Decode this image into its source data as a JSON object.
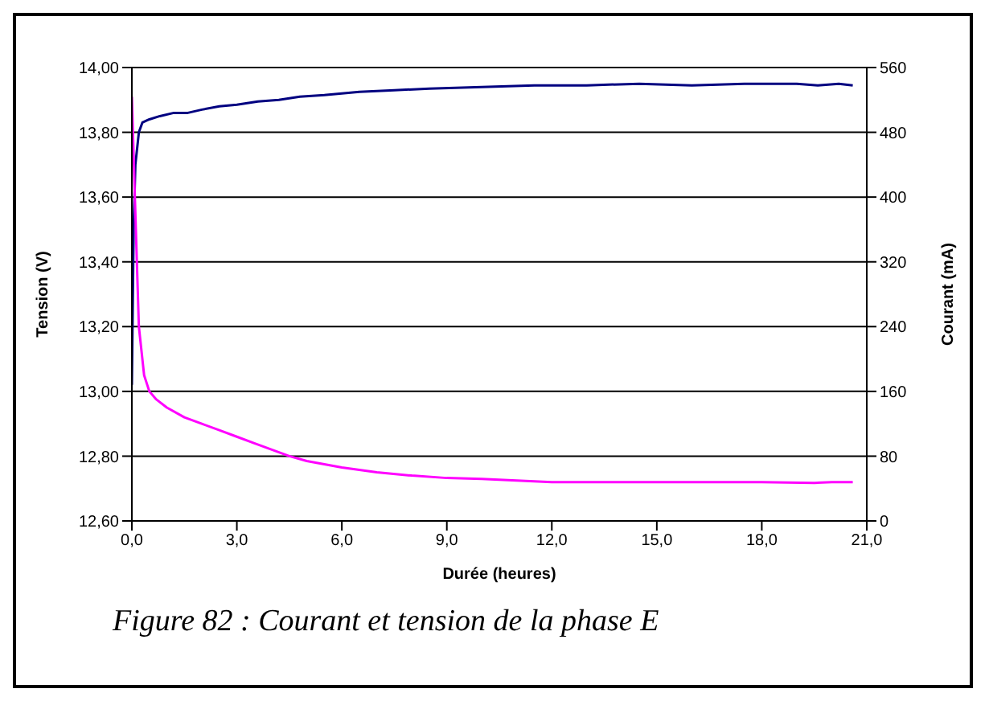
{
  "chart_data": {
    "type": "line",
    "xlabel": "Durée (heures)",
    "ylabel": "Tension (V)",
    "y2label": "Courant (mA)",
    "annotations": [
      "Figure 82 : Courant et tension de la phase E"
    ],
    "xlim": [
      0,
      21
    ],
    "xticks": [
      {
        "value": 0,
        "label": "0,0"
      },
      {
        "value": 3,
        "label": "3,0"
      },
      {
        "value": 6,
        "label": "6,0"
      },
      {
        "value": 9,
        "label": "9,0"
      },
      {
        "value": 12,
        "label": "12,0"
      },
      {
        "value": 15,
        "label": "15,0"
      },
      {
        "value": 18,
        "label": "18,0"
      },
      {
        "value": 21,
        "label": "21,0"
      }
    ],
    "ylim": [
      12.6,
      14
    ],
    "yticks": [
      {
        "value": 12.6,
        "label": "12,60"
      },
      {
        "value": 12.8,
        "label": "12,80"
      },
      {
        "value": 13,
        "label": "13,00"
      },
      {
        "value": 13.2,
        "label": "13,20"
      },
      {
        "value": 13.4,
        "label": "13,40"
      },
      {
        "value": 13.6,
        "label": "13,60"
      },
      {
        "value": 13.8,
        "label": "13,80"
      },
      {
        "value": 14,
        "label": "14,00"
      }
    ],
    "y2lim": [
      0,
      560
    ],
    "y2ticks": [
      0,
      80,
      160,
      240,
      320,
      400,
      480,
      560
    ],
    "grid": "y",
    "marker": "none",
    "line_style": "solid",
    "series": [
      {
        "color": "#000080",
        "x": [
          0,
          0.05,
          0.1,
          0.2,
          0.3,
          0.5,
          0.8,
          1.2,
          1.6,
          2.0,
          2.5,
          3.0,
          3.6,
          4.2,
          4.8,
          5.5,
          6.5,
          7.5,
          8.5,
          10,
          11.5,
          13,
          14.5,
          16,
          17.5,
          19,
          19.6,
          20.2,
          20.6
        ],
        "values": [
          13.02,
          13.5,
          13.7,
          13.8,
          13.83,
          13.84,
          13.85,
          13.86,
          13.86,
          13.87,
          13.88,
          13.885,
          13.895,
          13.9,
          13.91,
          13.915,
          13.925,
          13.93,
          13.935,
          13.94,
          13.945,
          13.945,
          13.95,
          13.945,
          13.95,
          13.95,
          13.945,
          13.95,
          13.945
        ]
      },
      {
        "color": "#ff00ff",
        "axis": "y2",
        "x": [
          0,
          0.1,
          0.2,
          0.35,
          0.5,
          0.7,
          1.0,
          1.5,
          2.0,
          2.5,
          3.0,
          3.5,
          4.0,
          4.5,
          5.0,
          6.0,
          7.0,
          8.0,
          9.0,
          10.0,
          11.0,
          12.0,
          14.0,
          16.0,
          18.0,
          19.5,
          20.0,
          20.6
        ],
        "values": [
          524,
          380,
          240,
          180,
          160,
          150,
          140,
          128,
          120,
          112,
          104,
          96,
          88,
          80,
          74,
          66,
          60,
          56,
          53,
          52,
          50,
          48,
          48,
          48,
          48,
          47,
          48,
          48
        ]
      }
    ]
  }
}
